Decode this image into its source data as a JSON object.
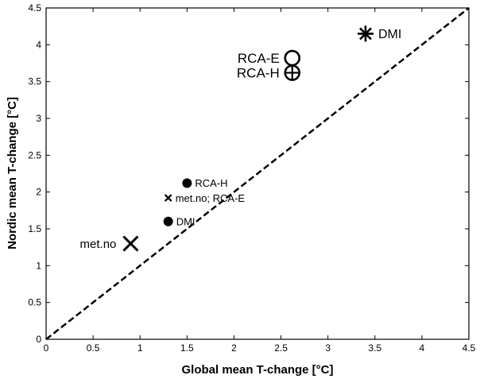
{
  "chart_data": {
    "type": "scatter",
    "xlabel": "Global mean T-change [°C]",
    "ylabel": "Nordic mean T-change [°C]",
    "xlim": [
      0,
      4.5
    ],
    "ylim": [
      0,
      4.5
    ],
    "xticks": [
      "0",
      "0.5",
      "1",
      "1.5",
      "2",
      "2.5",
      "3",
      "3.5",
      "4",
      "4.5"
    ],
    "yticks": [
      "0",
      "0.5",
      "1",
      "1.5",
      "2",
      "2.5",
      "3",
      "3.5",
      "4",
      "4.5"
    ],
    "grid": false,
    "reference_line": {
      "style": "dashed",
      "x": [
        0,
        4.5
      ],
      "y": [
        0,
        4.5
      ]
    },
    "points": [
      {
        "label": "met.no",
        "x": 0.9,
        "y": 1.3,
        "marker": "x-large",
        "label_side": "left"
      },
      {
        "label": "met.no; RCA-E",
        "x": 1.3,
        "y": 1.92,
        "marker": "x-small",
        "label_side": "right"
      },
      {
        "label": "DMI",
        "x": 1.3,
        "y": 1.6,
        "marker": "dot",
        "label_side": "right"
      },
      {
        "label": "RCA-H",
        "x": 1.5,
        "y": 2.12,
        "marker": "dot",
        "label_side": "right"
      },
      {
        "label": "RCA-E",
        "x": 2.62,
        "y": 3.82,
        "marker": "circle",
        "label_side": "left"
      },
      {
        "label": "RCA-H",
        "x": 2.62,
        "y": 3.62,
        "marker": "circle-plus",
        "label_side": "left"
      },
      {
        "label": "DMI",
        "x": 3.4,
        "y": 4.15,
        "marker": "asterisk",
        "label_side": "right"
      }
    ]
  }
}
